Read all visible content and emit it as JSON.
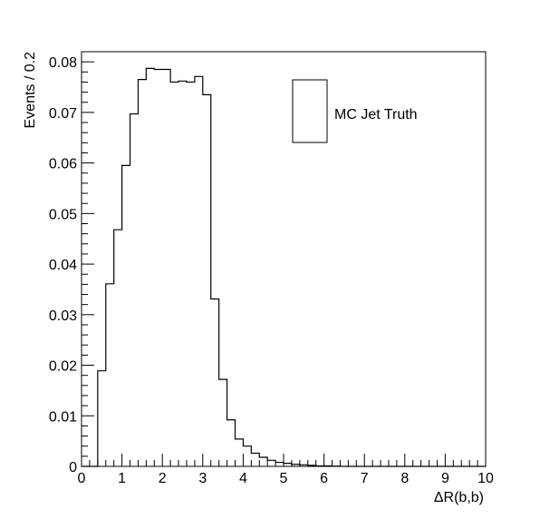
{
  "chart_data": {
    "type": "bar",
    "style": "step-histogram",
    "xlabel": "ΔR(b,b)",
    "ylabel": "Events / 0.2",
    "xlim": [
      0,
      10
    ],
    "ylim": [
      0,
      0.082
    ],
    "x_ticks": [
      0,
      1,
      2,
      3,
      4,
      5,
      6,
      7,
      8,
      9,
      10
    ],
    "x_tick_labels": [
      "0",
      "1",
      "2",
      "3",
      "4",
      "5",
      "6",
      "7",
      "8",
      "9",
      "10"
    ],
    "y_ticks": [
      0,
      0.01,
      0.02,
      0.03,
      0.04,
      0.05,
      0.06,
      0.07,
      0.08
    ],
    "y_tick_labels": [
      "0",
      "0.01",
      "0.02",
      "0.03",
      "0.04",
      "0.05",
      "0.06",
      "0.07",
      "0.08"
    ],
    "grid": false,
    "legend_position": "top-right",
    "series": [
      {
        "name": "MC Jet Truth",
        "color": "#000000",
        "bin_width": 0.2,
        "bin_edges_start": 0,
        "values": [
          0,
          0,
          0.0189,
          0.0361,
          0.0468,
          0.0595,
          0.0697,
          0.0765,
          0.0787,
          0.0785,
          0.0785,
          0.076,
          0.0762,
          0.076,
          0.0771,
          0.0735,
          0.0331,
          0.0172,
          0.0092,
          0.0054,
          0.004,
          0.0026,
          0.0018,
          0.0012,
          0.0008,
          0.0006,
          0.0004,
          0.0003,
          0.0002,
          0.0001,
          0.0001,
          5e-05,
          0,
          0,
          0,
          0,
          0,
          0,
          0,
          0,
          0,
          0,
          0,
          0,
          0,
          0,
          0,
          0,
          0,
          0
        ]
      }
    ]
  }
}
